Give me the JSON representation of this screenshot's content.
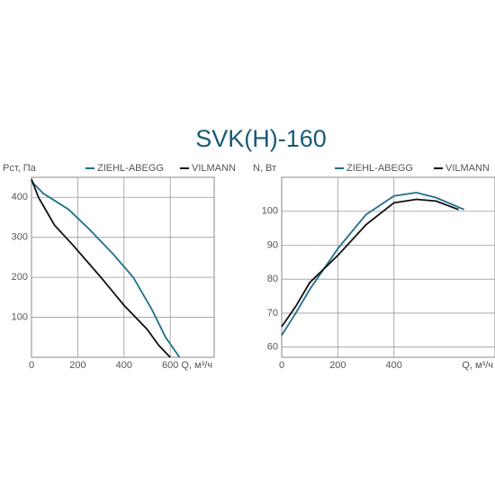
{
  "title": "SVK(H)-160",
  "chart_data": [
    {
      "type": "line",
      "y_label": "Pст, Па",
      "x_label": "Q, м³/ч",
      "xlim": [
        0,
        790
      ],
      "xticks": [
        0,
        200,
        400,
        600
      ],
      "ylim": [
        0,
        450
      ],
      "yticks": [
        100,
        200,
        300,
        400
      ],
      "grid": true,
      "series": [
        {
          "name": "ZIEHL-ABEGG",
          "color": "#1f6e8c",
          "x": [
            0,
            50,
            160,
            250,
            350,
            440,
            520,
            580,
            640
          ],
          "values": [
            440,
            410,
            370,
            320,
            260,
            200,
            120,
            50,
            0
          ]
        },
        {
          "name": "VILMANN",
          "color": "#111111",
          "x": [
            0,
            30,
            100,
            180,
            300,
            400,
            500,
            550,
            600
          ],
          "values": [
            445,
            400,
            330,
            280,
            200,
            130,
            70,
            30,
            0
          ]
        }
      ]
    },
    {
      "type": "line",
      "y_label": "N, Вт",
      "x_label": "Q, м³/ч",
      "xlim": [
        0,
        760
      ],
      "xticks": [
        0,
        200,
        400
      ],
      "ylim": [
        57,
        110
      ],
      "yticks": [
        60,
        70,
        80,
        90,
        100
      ],
      "grid": true,
      "series": [
        {
          "name": "ZIEHL-ABEGG",
          "color": "#1f6e8c",
          "x": [
            0,
            50,
            100,
            200,
            300,
            400,
            480,
            550,
            650
          ],
          "values": [
            63.5,
            70,
            77,
            89,
            99,
            104.5,
            105.5,
            104,
            100.5
          ]
        },
        {
          "name": "VILMANN",
          "color": "#111111",
          "x": [
            0,
            50,
            100,
            200,
            300,
            400,
            480,
            550,
            630
          ],
          "values": [
            66,
            72,
            79,
            87,
            96,
            102.5,
            103.5,
            103,
            100.5
          ]
        }
      ]
    }
  ]
}
